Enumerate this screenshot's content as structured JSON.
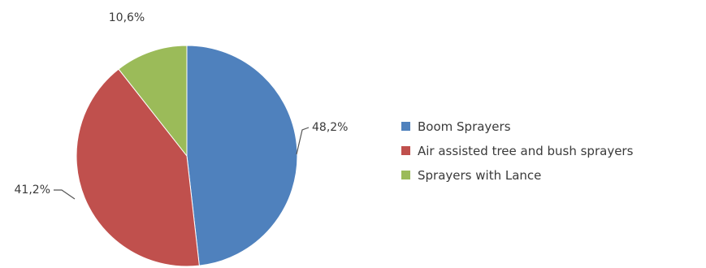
{
  "chart_data": {
    "type": "pie",
    "title": "",
    "legend_position": "right",
    "start_angle_deg": 0,
    "direction": "clockwise",
    "series": [
      {
        "name": "Boom Sprayers",
        "value": 48.2,
        "label": "48,2%",
        "color": "#4f81bd"
      },
      {
        "name": "Air assisted tree and bush sprayers",
        "value": 41.2,
        "label": "41,2%",
        "color": "#c0504d"
      },
      {
        "name": "Sprayers with Lance",
        "value": 10.6,
        "label": "10,6%",
        "color": "#9bbb59"
      }
    ]
  }
}
